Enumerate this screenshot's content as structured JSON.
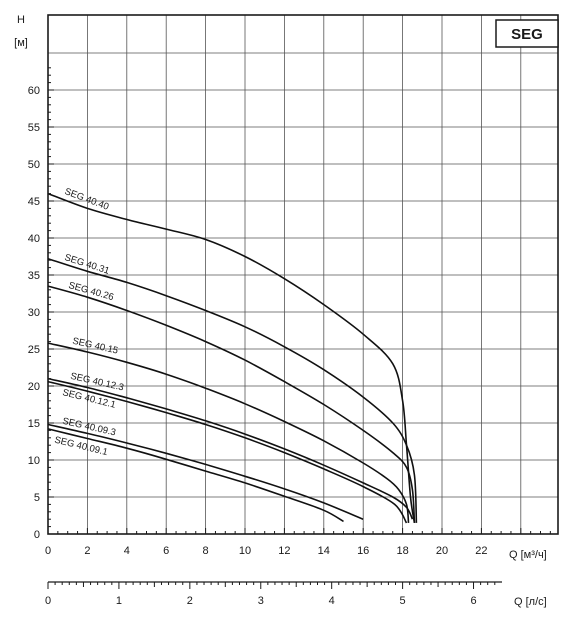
{
  "chart_data": {
    "type": "line",
    "title": "",
    "badge": "SEG",
    "ylabel_top": "H",
    "ylabel_unit": "[м]",
    "xlabel": "Q [м³/ч]",
    "xlabel2": "Q [л/с]",
    "xlim": [
      0,
      25
    ],
    "ylim": [
      0,
      65
    ],
    "x_ticks": [
      0,
      2,
      4,
      6,
      8,
      10,
      12,
      14,
      16,
      18,
      20,
      22
    ],
    "y_ticks": [
      0,
      5,
      10,
      15,
      20,
      25,
      30,
      35,
      40,
      45,
      50,
      55,
      60
    ],
    "x2_ticks": [
      0,
      1,
      2,
      3,
      4,
      5,
      6
    ],
    "grid": true,
    "series": [
      {
        "name": "SEG 40.40",
        "x": [
          0,
          2,
          4,
          6,
          8,
          10,
          12,
          14,
          16,
          17.5,
          18.0,
          18.2,
          18.4,
          18.6
        ],
        "y": [
          46,
          44,
          42.5,
          41.2,
          39.8,
          37.5,
          34.5,
          31,
          27,
          23,
          18,
          12,
          5,
          1.5
        ]
      },
      {
        "name": "SEG 40.31",
        "x": [
          0,
          2,
          4,
          6,
          8,
          10,
          12,
          14,
          16,
          17.5,
          18.2,
          18.6,
          18.7
        ],
        "y": [
          37.2,
          35.5,
          34,
          32.2,
          30.2,
          28,
          25.3,
          22.2,
          18.5,
          15,
          12,
          8,
          1.5
        ]
      },
      {
        "name": "SEG 40.26",
        "x": [
          0,
          2,
          4,
          6,
          8,
          10,
          12,
          14,
          16,
          17.5,
          18.2,
          18.5,
          18.6
        ],
        "y": [
          33.5,
          32,
          30.2,
          28.2,
          26,
          23.5,
          20.6,
          17.5,
          14,
          11,
          9,
          6,
          1.5
        ]
      },
      {
        "name": "SEG 40.15",
        "x": [
          0,
          2,
          4,
          6,
          8,
          10,
          12,
          14,
          16,
          17.2,
          17.8,
          18.2,
          18.3
        ],
        "y": [
          25.8,
          24.6,
          23.2,
          21.6,
          19.7,
          17.6,
          15.2,
          12.6,
          9.6,
          7.5,
          6,
          4,
          1.5
        ]
      },
      {
        "name": "SEG 40.12.3",
        "x": [
          0,
          2,
          4,
          6,
          8,
          10,
          12,
          14,
          16,
          17.5,
          18.2,
          18.5
        ],
        "y": [
          21,
          19.8,
          18.4,
          16.9,
          15.3,
          13.5,
          11.5,
          9.3,
          6.9,
          5,
          3.6,
          2
        ]
      },
      {
        "name": "SEG 40.12.1",
        "x": [
          0,
          2,
          4,
          6,
          8,
          10,
          12,
          14,
          16,
          17.6,
          18.2
        ],
        "y": [
          20.6,
          19.3,
          17.9,
          16.4,
          14.8,
          13,
          11,
          8.8,
          6.4,
          4,
          1.5
        ]
      },
      {
        "name": "SEG 40.09.3",
        "x": [
          0,
          2,
          4,
          6,
          8,
          10,
          12,
          14,
          16
        ],
        "y": [
          14.8,
          13.6,
          12.3,
          10.9,
          9.4,
          7.8,
          6.1,
          4.2,
          2
        ]
      },
      {
        "name": "SEG 40.09.1",
        "x": [
          0,
          2,
          4,
          6,
          8,
          10,
          12,
          14,
          15
        ],
        "y": [
          14.2,
          12.9,
          11.6,
          10.1,
          8.5,
          6.9,
          5.1,
          3.2,
          1.7
        ]
      }
    ]
  }
}
